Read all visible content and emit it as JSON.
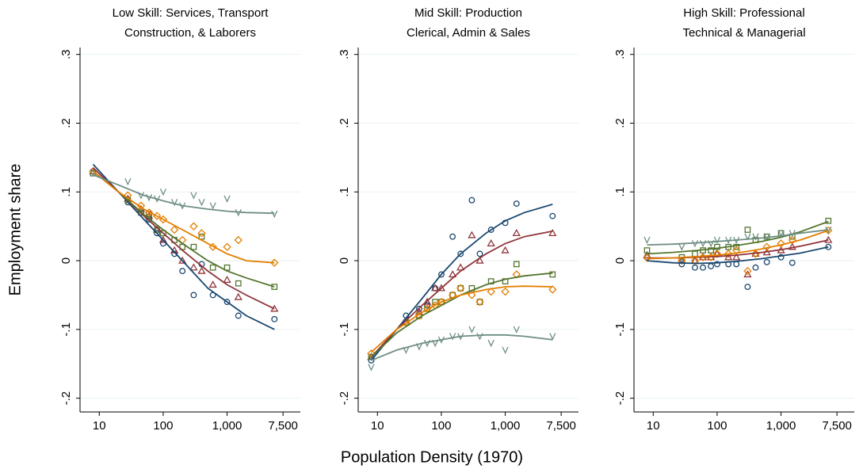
{
  "xlabel": "Population Density (1970)",
  "ylabel": "Employment share",
  "chart_data": [
    {
      "type": "scatter",
      "title": [
        "Low Skill: Services, Transport",
        "Construction, & Laborers"
      ],
      "xlog": true,
      "grid": true,
      "xlim": [
        5,
        14000
      ],
      "ylim": [
        -0.22,
        0.31
      ],
      "xticks": [
        10,
        100,
        {
          "value": 1000,
          "label": "1,000"
        },
        {
          "value": 7500,
          "label": "7,500"
        }
      ],
      "yticks": [
        {
          "value": -0.2,
          "label": "-.2"
        },
        {
          "value": -0.1,
          "label": "-.1"
        },
        0,
        {
          "value": 0.1,
          "label": ".1"
        },
        {
          "value": 0.2,
          "label": ".2"
        },
        {
          "value": 0.3,
          "label": ".3"
        }
      ],
      "x": [
        8,
        28,
        45,
        60,
        80,
        100,
        150,
        200,
        300,
        400,
        600,
        1000,
        1500,
        5500
      ],
      "fit_x": [
        8,
        20,
        50,
        100,
        200,
        500,
        1000,
        2000,
        5500
      ],
      "series": [
        {
          "color": "#1a476f",
          "marker": "circle",
          "values": [
            0.13,
            0.085,
            0.07,
            0.06,
            0.04,
            0.025,
            0.01,
            -0.015,
            -0.05,
            -0.005,
            -0.05,
            -0.06,
            -0.08,
            -0.085
          ],
          "fit": [
            0.14,
            0.1,
            0.06,
            0.03,
            0.0,
            -0.04,
            -0.06,
            -0.08,
            -0.1
          ]
        },
        {
          "color": "#90353b",
          "marker": "triangle",
          "values": [
            0.13,
            0.09,
            0.075,
            0.065,
            0.045,
            0.03,
            0.015,
            0.0,
            -0.01,
            -0.015,
            -0.035,
            -0.028,
            -0.053,
            -0.07
          ],
          "fit": [
            0.135,
            0.1,
            0.065,
            0.04,
            0.015,
            -0.015,
            -0.035,
            -0.05,
            -0.07
          ]
        },
        {
          "color": "#55752f",
          "marker": "square",
          "values": [
            0.127,
            0.088,
            0.07,
            0.068,
            0.045,
            0.04,
            0.03,
            0.02,
            0.02,
            0.035,
            -0.01,
            -0.01,
            -0.033,
            -0.038
          ],
          "fit": [
            0.13,
            0.1,
            0.067,
            0.045,
            0.025,
            0.0,
            -0.015,
            -0.025,
            -0.038
          ]
        },
        {
          "color": "#e37e00",
          "marker": "diamond",
          "values": [
            0.13,
            0.095,
            0.08,
            0.07,
            0.065,
            0.06,
            0.045,
            0.03,
            0.05,
            0.04,
            0.02,
            0.02,
            0.03,
            -0.003
          ],
          "fit": [
            0.13,
            0.1,
            0.075,
            0.06,
            0.045,
            0.025,
            0.01,
            0.0,
            -0.003
          ]
        },
        {
          "color": "#6e8e84",
          "marker": "v",
          "values": [
            0.128,
            0.115,
            0.095,
            0.092,
            0.09,
            0.1,
            0.085,
            0.08,
            0.095,
            0.085,
            0.08,
            0.09,
            0.07,
            0.068
          ],
          "fit": [
            0.125,
            0.11,
            0.095,
            0.087,
            0.08,
            0.075,
            0.072,
            0.07,
            0.069
          ]
        }
      ]
    },
    {
      "type": "scatter",
      "title": [
        "Mid Skill: Production",
        "Clerical, Admin & Sales"
      ],
      "xlog": true,
      "grid": true,
      "xlim": [
        5,
        14000
      ],
      "ylim": [
        -0.22,
        0.31
      ],
      "xticks": [
        10,
        100,
        {
          "value": 1000,
          "label": "1,000"
        },
        {
          "value": 7500,
          "label": "7,500"
        }
      ],
      "yticks": [
        {
          "value": -0.2,
          "label": "-.2"
        },
        {
          "value": -0.1,
          "label": "-.1"
        },
        0,
        {
          "value": 0.1,
          "label": ".1"
        },
        {
          "value": 0.2,
          "label": ".2"
        },
        {
          "value": 0.3,
          "label": ".3"
        }
      ],
      "x": [
        8,
        28,
        45,
        60,
        80,
        100,
        150,
        200,
        300,
        400,
        600,
        1000,
        1500,
        5500
      ],
      "fit_x": [
        8,
        20,
        50,
        100,
        200,
        500,
        1000,
        2000,
        5500
      ],
      "series": [
        {
          "color": "#1a476f",
          "marker": "circle",
          "values": [
            -0.145,
            -0.08,
            -0.07,
            -0.065,
            -0.04,
            -0.02,
            0.035,
            0.01,
            0.088,
            0.01,
            0.045,
            0.055,
            0.083,
            0.065
          ],
          "fit": [
            -0.145,
            -0.1,
            -0.055,
            -0.02,
            0.01,
            0.04,
            0.058,
            0.07,
            0.082
          ]
        },
        {
          "color": "#90353b",
          "marker": "triangle",
          "values": [
            -0.14,
            -0.09,
            -0.075,
            -0.06,
            -0.04,
            -0.04,
            -0.02,
            -0.01,
            0.037,
            0.0,
            0.025,
            0.015,
            0.04,
            0.04
          ],
          "fit": [
            -0.14,
            -0.1,
            -0.065,
            -0.04,
            -0.015,
            0.01,
            0.025,
            0.035,
            0.043
          ]
        },
        {
          "color": "#55752f",
          "marker": "square",
          "values": [
            -0.14,
            -0.09,
            -0.08,
            -0.07,
            -0.06,
            -0.06,
            -0.05,
            -0.04,
            -0.04,
            -0.06,
            -0.03,
            -0.03,
            -0.005,
            -0.02
          ],
          "fit": [
            -0.14,
            -0.105,
            -0.08,
            -0.065,
            -0.05,
            -0.035,
            -0.027,
            -0.022,
            -0.018
          ]
        },
        {
          "color": "#e37e00",
          "marker": "diamond",
          "values": [
            -0.135,
            -0.09,
            -0.08,
            -0.07,
            -0.065,
            -0.06,
            -0.05,
            -0.04,
            -0.05,
            -0.06,
            -0.045,
            -0.045,
            -0.02,
            -0.042
          ],
          "fit": [
            -0.133,
            -0.1,
            -0.075,
            -0.06,
            -0.05,
            -0.042,
            -0.038,
            -0.037,
            -0.038
          ]
        },
        {
          "color": "#6e8e84",
          "marker": "v",
          "values": [
            -0.155,
            -0.13,
            -0.125,
            -0.12,
            -0.12,
            -0.115,
            -0.11,
            -0.11,
            -0.1,
            -0.11,
            -0.12,
            -0.13,
            -0.1,
            -0.11
          ],
          "fit": [
            -0.145,
            -0.13,
            -0.12,
            -0.115,
            -0.11,
            -0.108,
            -0.108,
            -0.11,
            -0.115
          ]
        }
      ]
    },
    {
      "type": "scatter",
      "title": [
        "High Skill: Professional",
        "Technical & Managerial"
      ],
      "xlog": true,
      "grid": true,
      "xlim": [
        5,
        14000
      ],
      "ylim": [
        -0.22,
        0.31
      ],
      "xticks": [
        10,
        100,
        {
          "value": 1000,
          "label": "1,000"
        },
        {
          "value": 7500,
          "label": "7,500"
        }
      ],
      "yticks": [
        {
          "value": -0.2,
          "label": "-.2"
        },
        {
          "value": -0.1,
          "label": "-.1"
        },
        0,
        {
          "value": 0.1,
          "label": ".1"
        },
        {
          "value": 0.2,
          "label": ".2"
        },
        {
          "value": 0.3,
          "label": ".3"
        }
      ],
      "x": [
        8,
        28,
        45,
        60,
        80,
        100,
        150,
        200,
        300,
        400,
        600,
        1000,
        1500,
        5500
      ],
      "fit_x": [
        8,
        20,
        50,
        100,
        200,
        500,
        1000,
        2000,
        5500
      ],
      "series": [
        {
          "color": "#1a476f",
          "marker": "circle",
          "values": [
            0.005,
            -0.005,
            -0.01,
            -0.01,
            -0.008,
            -0.005,
            -0.005,
            -0.005,
            -0.038,
            -0.01,
            -0.002,
            0.005,
            -0.003,
            0.02
          ],
          "fit": [
            0.0,
            -0.003,
            -0.004,
            -0.003,
            -0.001,
            0.003,
            0.007,
            0.011,
            0.02
          ]
        },
        {
          "color": "#90353b",
          "marker": "triangle",
          "values": [
            0.008,
            0.0,
            0.0,
            0.005,
            0.005,
            0.01,
            0.005,
            0.005,
            -0.02,
            0.01,
            0.012,
            0.015,
            0.02,
            0.03
          ],
          "fit": [
            0.004,
            0.004,
            0.005,
            0.006,
            0.008,
            0.012,
            0.016,
            0.021,
            0.03
          ]
        },
        {
          "color": "#55752f",
          "marker": "square",
          "values": [
            0.015,
            0.005,
            0.01,
            0.015,
            0.015,
            0.02,
            0.02,
            0.02,
            0.045,
            0.03,
            0.035,
            0.04,
            0.035,
            0.058
          ],
          "fit": [
            0.01,
            0.012,
            0.015,
            0.018,
            0.022,
            0.028,
            0.034,
            0.042,
            0.057
          ]
        },
        {
          "color": "#e37e00",
          "marker": "diamond",
          "values": [
            0.004,
            0.0,
            0.0,
            0.005,
            0.005,
            0.01,
            0.01,
            0.015,
            -0.015,
            0.01,
            0.02,
            0.025,
            0.03,
            0.044
          ],
          "fit": [
            0.003,
            0.004,
            0.006,
            0.008,
            0.011,
            0.017,
            0.023,
            0.03,
            0.044
          ]
        },
        {
          "color": "#6e8e84",
          "marker": "v",
          "values": [
            0.03,
            0.02,
            0.025,
            0.025,
            0.025,
            0.03,
            0.03,
            0.03,
            0.035,
            0.035,
            0.035,
            0.04,
            0.04,
            0.045
          ],
          "fit": [
            0.023,
            0.024,
            0.026,
            0.028,
            0.03,
            0.033,
            0.036,
            0.04,
            0.045
          ]
        }
      ]
    }
  ]
}
